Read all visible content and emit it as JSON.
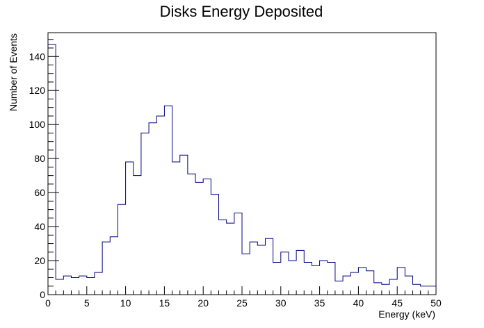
{
  "chart_data": {
    "type": "bar",
    "style": "step-histogram",
    "title": "Disks Energy Deposited",
    "xlabel": "Energy (keV)",
    "ylabel": "Number of Events",
    "xlim": [
      0,
      50
    ],
    "ylim": [
      0,
      154
    ],
    "bin_width": 1,
    "x_ticks": [
      0,
      5,
      10,
      15,
      20,
      25,
      30,
      35,
      40,
      45,
      50
    ],
    "y_ticks": [
      0,
      20,
      40,
      60,
      80,
      100,
      120,
      140
    ],
    "grid": false,
    "line_color": "#000080",
    "values": [
      147,
      9,
      11,
      10,
      11,
      10,
      13,
      31,
      34,
      53,
      78,
      70,
      95,
      101,
      105,
      111,
      78,
      82,
      71,
      66,
      68,
      59,
      44,
      42,
      48,
      24,
      31,
      29,
      33,
      19,
      25,
      20,
      26,
      19,
      17,
      20,
      19,
      8,
      11,
      13,
      16,
      14,
      7,
      6,
      9,
      16,
      11,
      6,
      5,
      5
    ]
  }
}
